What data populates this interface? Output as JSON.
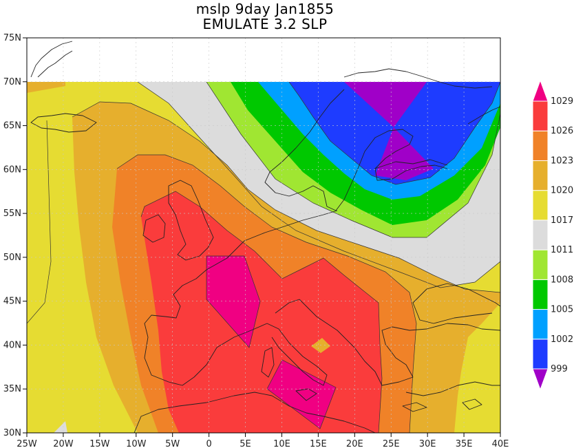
{
  "title": {
    "line1": "mslp 9day Jan1855",
    "line2": "EMULATE 3.2 SLP"
  },
  "map": {
    "lon_range": [
      -25,
      40
    ],
    "lat_range": [
      30,
      75
    ],
    "data_lat_max": 70,
    "lon_tick_labels": [
      "25W",
      "20W",
      "15W",
      "10W",
      "5W",
      "0",
      "5E",
      "10E",
      "15E",
      "20E",
      "25E",
      "30E",
      "35E",
      "40E"
    ],
    "lat_tick_labels": [
      "30N",
      "35N",
      "40N",
      "45N",
      "50N",
      "55N",
      "60N",
      "65N",
      "70N",
      "75N"
    ]
  },
  "colorbar": {
    "labels": [
      "999",
      "1002",
      "1005",
      "1008",
      "1011",
      "1017",
      "1020",
      "1023",
      "1026",
      "1029"
    ],
    "colors": [
      "#a000c8",
      "#1e3cff",
      "#00a0ff",
      "#00c800",
      "#a0e632",
      "#dcdcdc",
      "#e6dc32",
      "#e6af2d",
      "#f08228",
      "#fa3c3c",
      "#f00082"
    ]
  }
}
